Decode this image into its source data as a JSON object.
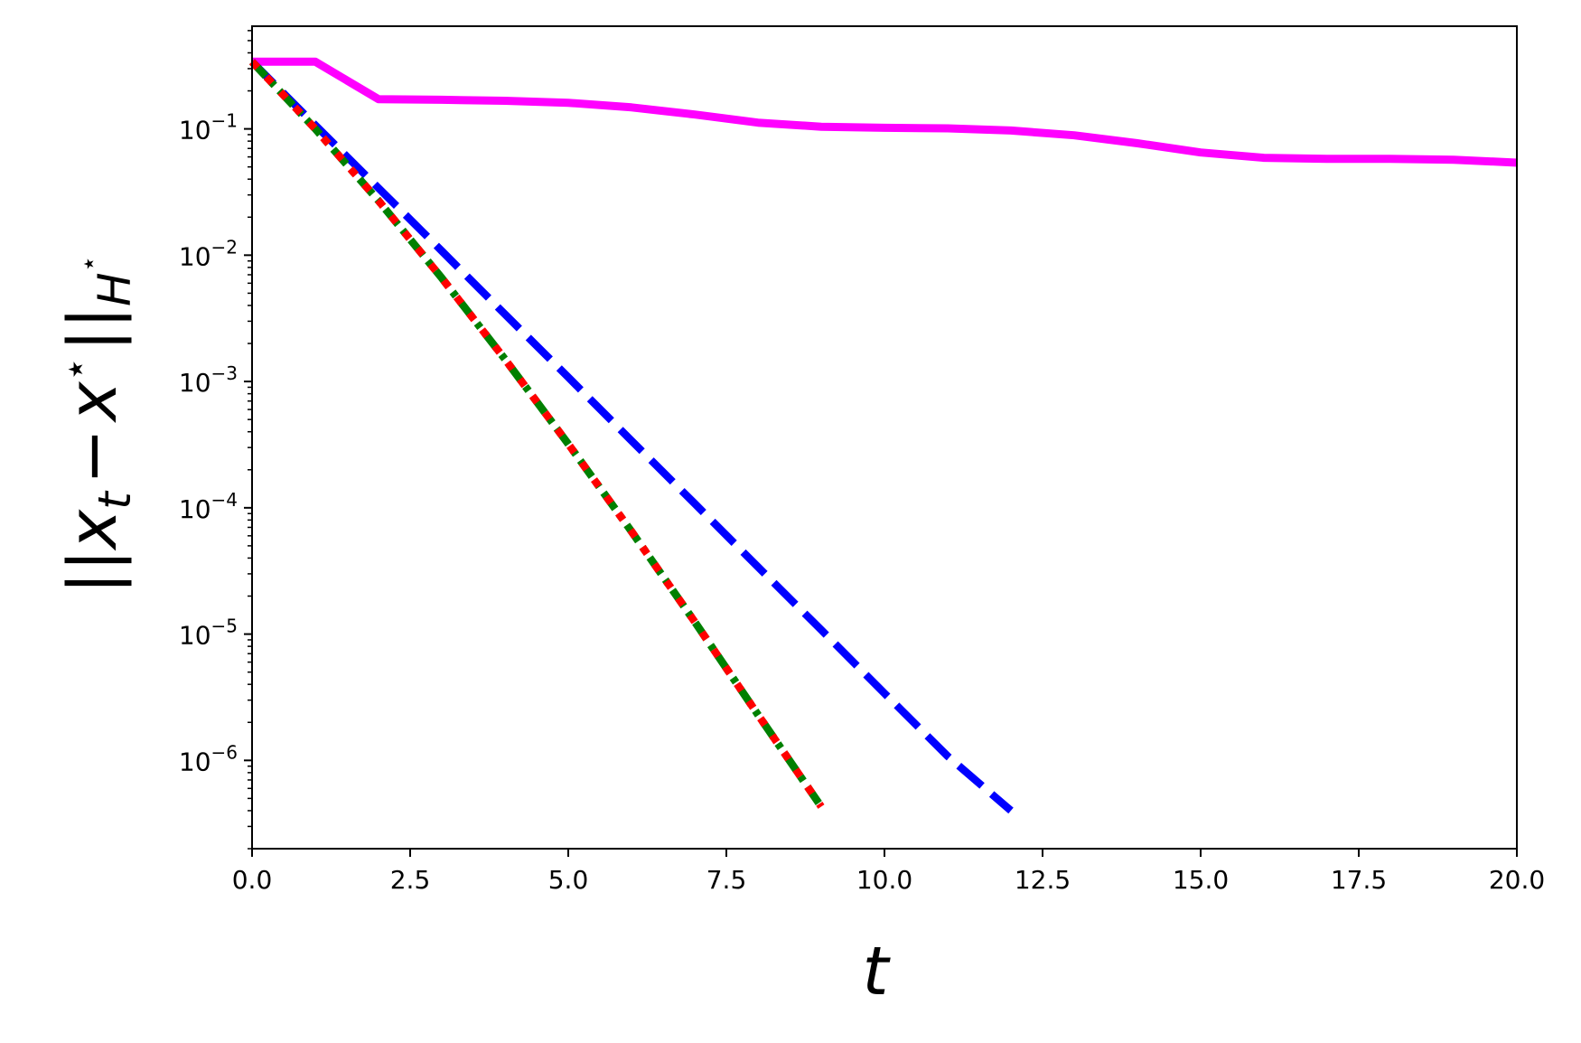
{
  "chart_data": {
    "type": "line",
    "xlabel": "t",
    "ylabel": "||x_t − x*||_H*",
    "ylabel_parts": {
      "bars": "||",
      "x": "x",
      "sub_t": "t",
      "minus": "−",
      "x2": "x",
      "star": "⋆",
      "H": "H",
      "star2": "⋆"
    },
    "xlim": [
      0,
      20
    ],
    "ylim": [
      2e-07,
      0.65
    ],
    "yscale": "log",
    "grid": false,
    "x_ticks": [
      0,
      2.5,
      5,
      7.5,
      10,
      12.5,
      15,
      17.5,
      20
    ],
    "x_tick_labels": [
      "0.0",
      "2.5",
      "5.0",
      "7.5",
      "10.0",
      "12.5",
      "15.0",
      "17.5",
      "20.0"
    ],
    "y_ticks": [
      0.1,
      0.01,
      0.001,
      0.0001,
      1e-05,
      1e-06
    ],
    "y_tick_labels": [
      {
        "base": "10",
        "exp": "−1"
      },
      {
        "base": "10",
        "exp": "−2"
      },
      {
        "base": "10",
        "exp": "−3"
      },
      {
        "base": "10",
        "exp": "−4"
      },
      {
        "base": "10",
        "exp": "−5"
      },
      {
        "base": "10",
        "exp": "−6"
      }
    ],
    "series": [
      {
        "color": "#ff00ff",
        "style": "solid",
        "x": [
          0,
          1,
          2,
          3,
          4,
          5,
          6,
          7,
          8,
          9,
          10,
          11,
          12,
          13,
          14,
          15,
          16,
          17,
          18,
          19,
          20
        ],
        "y": [
          0.34,
          0.34,
          0.172,
          0.17,
          0.167,
          0.161,
          0.148,
          0.13,
          0.112,
          0.104,
          0.102,
          0.101,
          0.097,
          0.089,
          0.077,
          0.065,
          0.059,
          0.058,
          0.058,
          0.057,
          0.054
        ]
      },
      {
        "color": "#0000ff",
        "style": "dashed",
        "x": [
          0,
          1,
          2,
          3,
          4,
          5,
          6,
          7,
          8,
          9,
          10,
          11,
          12
        ],
        "y": [
          0.34,
          0.107,
          0.034,
          0.0108,
          0.0034,
          0.00108,
          0.00034,
          0.000108,
          3.4e-05,
          1.08e-05,
          3.4e-06,
          1.08e-06,
          4e-07
        ]
      },
      {
        "color": "#008000",
        "style": "dashdot",
        "x": [
          0,
          1,
          2,
          3,
          4,
          5,
          6,
          7,
          8,
          9
        ],
        "y": [
          0.34,
          0.1,
          0.027,
          0.0066,
          0.0015,
          0.00032,
          6.5e-05,
          1.25e-05,
          2.3e-06,
          4.3e-07
        ]
      },
      {
        "color": "#ff0000",
        "style": "dotted",
        "x": [
          0,
          1,
          2,
          3,
          4,
          5,
          6,
          7,
          8,
          9
        ],
        "y": [
          0.34,
          0.1,
          0.027,
          0.0066,
          0.0015,
          0.00032,
          6.5e-05,
          1.25e-05,
          2.3e-06,
          4.3e-07
        ]
      }
    ]
  }
}
